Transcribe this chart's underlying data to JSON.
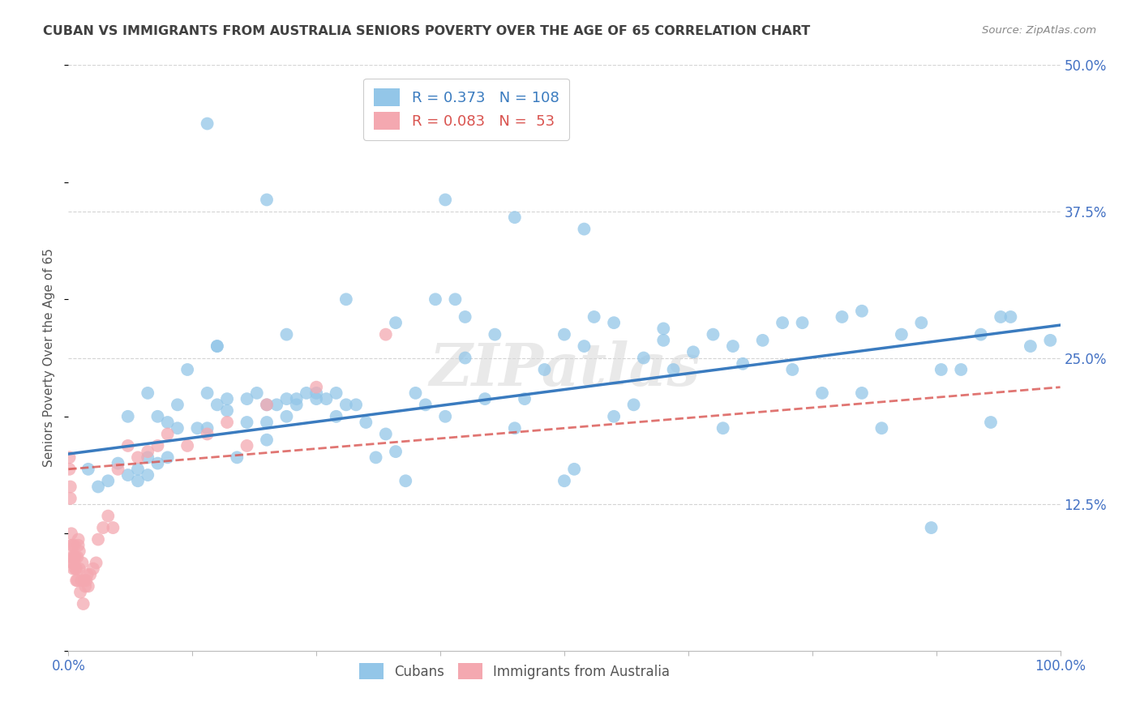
{
  "title": "CUBAN VS IMMIGRANTS FROM AUSTRALIA SENIORS POVERTY OVER THE AGE OF 65 CORRELATION CHART",
  "source": "Source: ZipAtlas.com",
  "ylabel": "Seniors Poverty Over the Age of 65",
  "xlim": [
    0,
    1.0
  ],
  "ylim": [
    0,
    0.5
  ],
  "legend_cubans_R": "0.373",
  "legend_cubans_N": "108",
  "legend_australia_R": "0.083",
  "legend_australia_N": "53",
  "cubans_color": "#93c6e8",
  "australia_color": "#f4a8b0",
  "trend_cubans_color": "#3a7bbf",
  "trend_australia_color": "#d9534f",
  "watermark": "ZIPatlas",
  "background_color": "#ffffff",
  "grid_color": "#d0d0d0",
  "title_color": "#404040",
  "axis_color": "#4472c4",
  "cubans_x": [
    0.02,
    0.03,
    0.04,
    0.05,
    0.06,
    0.06,
    0.07,
    0.07,
    0.08,
    0.08,
    0.08,
    0.09,
    0.09,
    0.1,
    0.1,
    0.11,
    0.11,
    0.12,
    0.13,
    0.14,
    0.14,
    0.15,
    0.15,
    0.16,
    0.16,
    0.17,
    0.18,
    0.18,
    0.19,
    0.2,
    0.2,
    0.2,
    0.21,
    0.22,
    0.22,
    0.23,
    0.23,
    0.24,
    0.25,
    0.25,
    0.26,
    0.27,
    0.27,
    0.28,
    0.29,
    0.3,
    0.31,
    0.32,
    0.33,
    0.34,
    0.35,
    0.36,
    0.37,
    0.38,
    0.39,
    0.4,
    0.42,
    0.43,
    0.45,
    0.46,
    0.48,
    0.5,
    0.51,
    0.52,
    0.53,
    0.55,
    0.57,
    0.58,
    0.6,
    0.61,
    0.63,
    0.65,
    0.66,
    0.68,
    0.7,
    0.72,
    0.74,
    0.76,
    0.78,
    0.8,
    0.82,
    0.84,
    0.86,
    0.88,
    0.9,
    0.92,
    0.94,
    0.95,
    0.97,
    0.99,
    0.14,
    0.2,
    0.38,
    0.45,
    0.52,
    0.15,
    0.22,
    0.28,
    0.33,
    0.4,
    0.5,
    0.55,
    0.6,
    0.67,
    0.73,
    0.8,
    0.87,
    0.93
  ],
  "cubans_y": [
    0.155,
    0.14,
    0.145,
    0.16,
    0.15,
    0.2,
    0.145,
    0.155,
    0.15,
    0.165,
    0.22,
    0.16,
    0.2,
    0.195,
    0.165,
    0.21,
    0.19,
    0.24,
    0.19,
    0.22,
    0.19,
    0.26,
    0.21,
    0.215,
    0.205,
    0.165,
    0.195,
    0.215,
    0.22,
    0.21,
    0.195,
    0.18,
    0.21,
    0.2,
    0.215,
    0.21,
    0.215,
    0.22,
    0.215,
    0.22,
    0.215,
    0.22,
    0.2,
    0.21,
    0.21,
    0.195,
    0.165,
    0.185,
    0.17,
    0.145,
    0.22,
    0.21,
    0.3,
    0.2,
    0.3,
    0.25,
    0.215,
    0.27,
    0.19,
    0.215,
    0.24,
    0.27,
    0.155,
    0.26,
    0.285,
    0.28,
    0.21,
    0.25,
    0.265,
    0.24,
    0.255,
    0.27,
    0.19,
    0.245,
    0.265,
    0.28,
    0.28,
    0.22,
    0.285,
    0.29,
    0.19,
    0.27,
    0.28,
    0.24,
    0.24,
    0.27,
    0.285,
    0.285,
    0.26,
    0.265,
    0.45,
    0.385,
    0.385,
    0.37,
    0.36,
    0.26,
    0.27,
    0.3,
    0.28,
    0.285,
    0.145,
    0.2,
    0.275,
    0.26,
    0.24,
    0.22,
    0.105,
    0.195
  ],
  "australia_x": [
    0.001,
    0.001,
    0.002,
    0.002,
    0.003,
    0.003,
    0.003,
    0.004,
    0.004,
    0.005,
    0.005,
    0.005,
    0.006,
    0.006,
    0.007,
    0.007,
    0.008,
    0.008,
    0.009,
    0.009,
    0.01,
    0.01,
    0.011,
    0.011,
    0.012,
    0.013,
    0.014,
    0.015,
    0.016,
    0.017,
    0.018,
    0.019,
    0.02,
    0.022,
    0.025,
    0.028,
    0.03,
    0.035,
    0.04,
    0.045,
    0.05,
    0.06,
    0.07,
    0.08,
    0.09,
    0.1,
    0.12,
    0.14,
    0.16,
    0.18,
    0.2,
    0.25,
    0.32
  ],
  "australia_y": [
    0.155,
    0.165,
    0.13,
    0.14,
    0.09,
    0.1,
    0.08,
    0.09,
    0.075,
    0.07,
    0.075,
    0.08,
    0.08,
    0.09,
    0.08,
    0.07,
    0.06,
    0.07,
    0.08,
    0.06,
    0.09,
    0.095,
    0.07,
    0.085,
    0.05,
    0.06,
    0.075,
    0.04,
    0.06,
    0.055,
    0.06,
    0.065,
    0.055,
    0.065,
    0.07,
    0.075,
    0.095,
    0.105,
    0.115,
    0.105,
    0.155,
    0.175,
    0.165,
    0.17,
    0.175,
    0.185,
    0.175,
    0.185,
    0.195,
    0.175,
    0.21,
    0.225,
    0.27
  ],
  "cubans_trend": [
    0.168,
    0.278
  ],
  "australia_trend": [
    0.155,
    0.225
  ]
}
